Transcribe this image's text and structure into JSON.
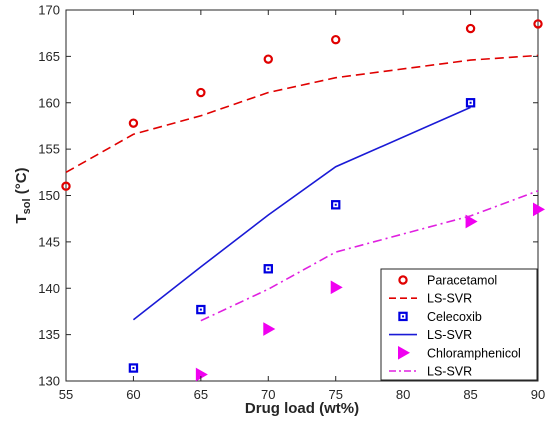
{
  "chart_data": {
    "type": "scatter",
    "xlabel": "Drug load (wt%)",
    "ylabel_main": "T",
    "ylabel_sub": "sol",
    "ylabel_unit": " (°C)",
    "xlim": [
      55,
      90
    ],
    "ylim": [
      130,
      170
    ],
    "xticks": [
      55,
      60,
      65,
      70,
      75,
      80,
      85,
      90
    ],
    "yticks": [
      130,
      135,
      140,
      145,
      150,
      155,
      160,
      165,
      170
    ],
    "grid": false,
    "legend_position": "bottom-right",
    "series": [
      {
        "name": "Paracetamol",
        "kind": "marker",
        "marker": "circle",
        "color": "#e00000",
        "x": [
          55,
          60,
          65,
          70,
          75,
          85,
          90
        ],
        "y": [
          151.0,
          157.8,
          161.1,
          164.7,
          166.8,
          168.0,
          168.5
        ]
      },
      {
        "name": "LS-SVR",
        "kind": "line",
        "dash": "dashed",
        "color": "#e00000",
        "x": [
          55,
          60,
          65,
          70,
          75,
          85,
          90
        ],
        "y": [
          152.5,
          156.6,
          158.6,
          161.1,
          162.7,
          164.6,
          165.1
        ]
      },
      {
        "name": "Celecoxib",
        "kind": "marker",
        "marker": "square",
        "color": "#0000e0",
        "x": [
          60,
          65,
          70,
          75,
          85
        ],
        "y": [
          131.4,
          137.7,
          142.1,
          149.0,
          160.0
        ]
      },
      {
        "name": "LS-SVR",
        "kind": "line",
        "dash": "solid",
        "color": "#1a1ad6",
        "x": [
          60,
          65,
          70,
          75,
          85
        ],
        "y": [
          136.6,
          142.3,
          147.9,
          153.1,
          159.5
        ]
      },
      {
        "name": "Chloramphenicol",
        "kind": "marker",
        "marker": "triangle-right",
        "color": "#f000f0",
        "x": [
          65,
          70,
          75,
          85,
          90
        ],
        "y": [
          130.7,
          135.6,
          140.1,
          147.2,
          148.5
        ]
      },
      {
        "name": "LS-SVR",
        "kind": "line",
        "dash": "dashdot",
        "color": "#e020e0",
        "x": [
          65,
          70,
          75,
          85,
          90
        ],
        "y": [
          136.5,
          139.9,
          143.9,
          147.8,
          150.5
        ]
      }
    ]
  }
}
